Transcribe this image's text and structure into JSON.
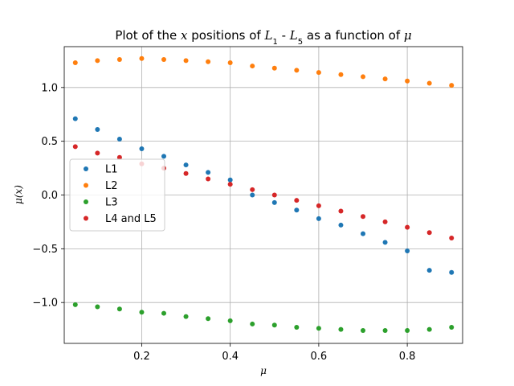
{
  "chart_data": {
    "type": "scatter",
    "title_parts": [
      "Plot of the ",
      "x",
      " positions of ",
      "L",
      "1",
      " - ",
      "L",
      "5",
      " as a function of ",
      "μ"
    ],
    "xlabel": "μ",
    "ylabel": "μ(x)",
    "xlim": [
      0.025,
      0.925
    ],
    "ylim": [
      -1.38,
      1.38
    ],
    "xticks": [
      0.2,
      0.4,
      0.6,
      0.8
    ],
    "xtick_labels": [
      "0.2",
      "0.4",
      "0.6",
      "0.8"
    ],
    "yticks": [
      -1.0,
      -0.5,
      0.0,
      0.5,
      1.0
    ],
    "ytick_labels": [
      "−1.0",
      "−0.5",
      "0.0",
      "0.5",
      "1.0"
    ],
    "grid": true,
    "legend_position": "center-left",
    "x": [
      0.05,
      0.1,
      0.15,
      0.2,
      0.25,
      0.3,
      0.35,
      0.4,
      0.45,
      0.5,
      0.55,
      0.6,
      0.65,
      0.7,
      0.75,
      0.8,
      0.85,
      0.9
    ],
    "series": [
      {
        "name": "L1",
        "color": "#1f77b4",
        "values": [
          0.71,
          0.61,
          0.52,
          0.43,
          0.36,
          0.28,
          0.21,
          0.14,
          0.0,
          -0.07,
          -0.14,
          -0.22,
          -0.28,
          -0.36,
          -0.44,
          -0.52,
          -0.7,
          -0.72
        ]
      },
      {
        "name": "L2",
        "color": "#ff7f0e",
        "values": [
          1.23,
          1.25,
          1.26,
          1.27,
          1.26,
          1.25,
          1.24,
          1.23,
          1.2,
          1.18,
          1.16,
          1.14,
          1.12,
          1.1,
          1.08,
          1.06,
          1.04,
          1.02
        ]
      },
      {
        "name": "L3",
        "color": "#2ca02c",
        "values": [
          -1.02,
          -1.04,
          -1.06,
          -1.09,
          -1.1,
          -1.13,
          -1.15,
          -1.17,
          -1.2,
          -1.21,
          -1.23,
          -1.24,
          -1.25,
          -1.26,
          -1.26,
          -1.26,
          -1.25,
          -1.23
        ]
      },
      {
        "name": "L4 and L5",
        "color": "#d62728",
        "values": [
          0.45,
          0.39,
          0.35,
          0.29,
          0.25,
          0.2,
          0.15,
          0.1,
          0.05,
          0.0,
          -0.05,
          -0.1,
          -0.15,
          -0.2,
          -0.25,
          -0.3,
          -0.35,
          -0.4
        ]
      }
    ]
  }
}
